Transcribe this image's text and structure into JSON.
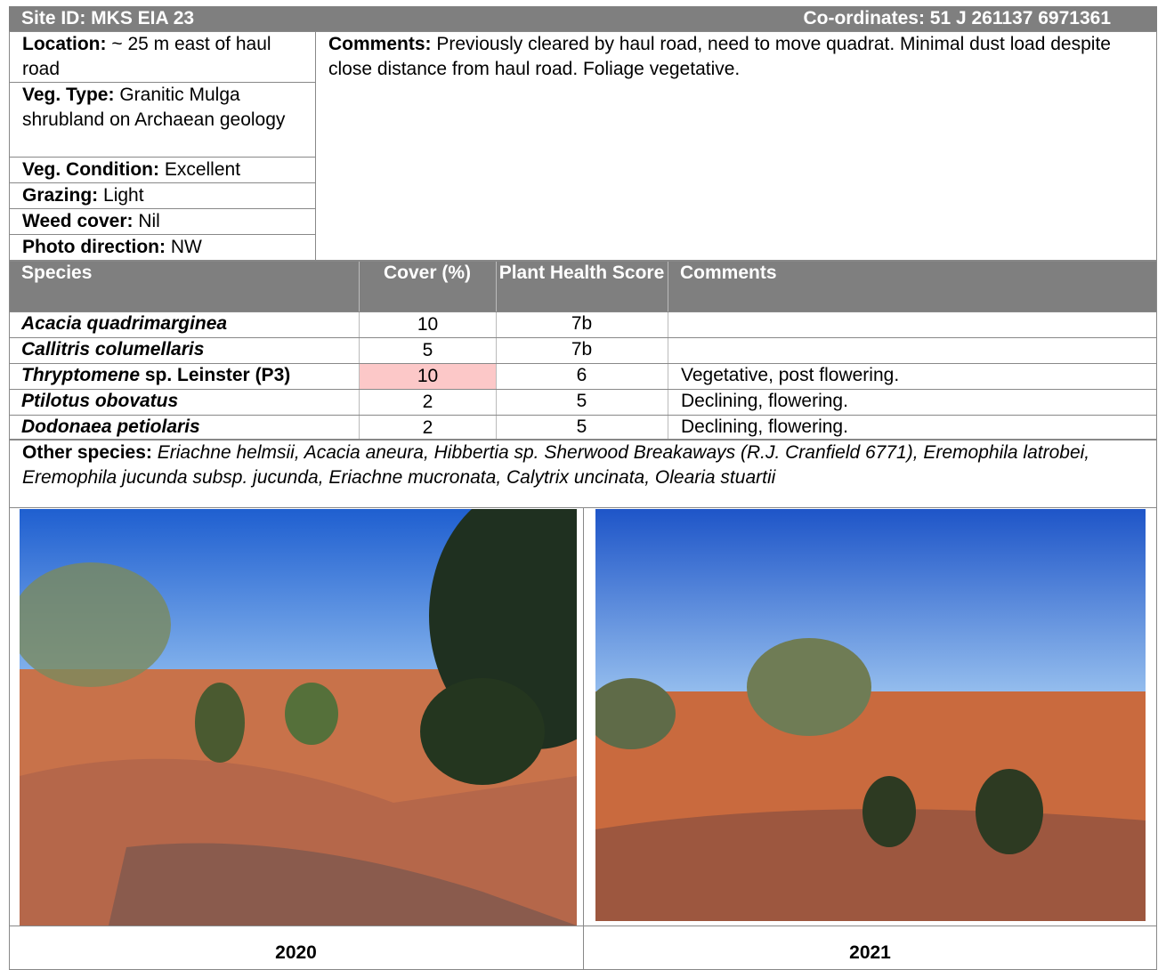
{
  "header": {
    "site": "Site ID: MKS EIA 23",
    "coordinates": "Co-ordinates: 51 J 261137 6971361"
  },
  "fields": [
    {
      "label": "Location:",
      "value": "~ 25 m east of haul road"
    },
    {
      "label": "Veg. Type:",
      "value": "Granitic Mulga shrubland on Archaean geology"
    },
    {
      "label": "Veg. Condition:",
      "value": "Excellent"
    },
    {
      "label": "Grazing:",
      "value": "Light"
    },
    {
      "label": "Weed cover:",
      "value": "Nil"
    },
    {
      "label": "Photo direction:",
      "value": "NW"
    }
  ],
  "comments": {
    "label": "Comments:",
    "value": "Previously cleared by haul road, need to move quadrat. Minimal dust load despite close distance from haul road. Foliage vegetative."
  },
  "table": {
    "headers": [
      "Species",
      "Cover (%)",
      "Plant Health Score",
      "Comments"
    ],
    "rows": [
      {
        "species": "Acacia quadrimarginea",
        "cover": 10,
        "health": "7b",
        "comment": null
      },
      {
        "species": "Callitris columellaris",
        "cover": 5,
        "health": "7b",
        "comment": null
      },
      {
        "species": "Thryptomene",
        "species_rest": "sp. Leinster (P3)",
        "cover": 10,
        "health": 6,
        "comment": "Vegetative, post flowering.",
        "highlight": true
      },
      {
        "species": "Ptilotus obovatus",
        "cover": 2,
        "health": 5,
        "comment": "Declining, flowering."
      },
      {
        "species": "Dodonaea petiolaris",
        "cover": 2,
        "health": 5,
        "comment": "Declining, flowering."
      }
    ]
  },
  "other_species": {
    "label": "Other species:",
    "value": "Eriachne helmsii, Acacia aneura, Hibbertia sp. Sherwood Breakaways (R.J. Cranfield 6771), Eremophila latrobei, Eremophila jucunda subsp. jucunda, Eriachne mucronata, Calytrix uncinata, Olearia stuartii"
  },
  "photos": [
    {
      "caption": "2020"
    },
    {
      "caption": "2021"
    }
  ]
}
